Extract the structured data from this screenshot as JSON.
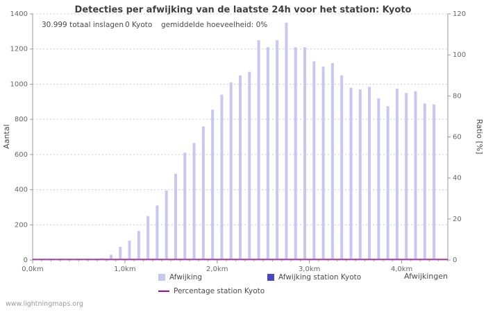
{
  "header": {
    "title": "Detecties per afwijking van de laatste 24h voor het station: Kyoto"
  },
  "annotations": {
    "total": "30.999 totaal inslagen",
    "station_count": "0 Kyoto",
    "average": "gemiddelde hoeveelheid: 0%"
  },
  "axes": {
    "left_label": "Aantal",
    "right_label": "Ratio [%]",
    "x_label": "Afwijkingen"
  },
  "legend": [
    {
      "label": "Afwijking",
      "type": "box"
    },
    {
      "label": "Afwijking station Kyoto",
      "type": "box"
    },
    {
      "label": "Percentage station Kyoto",
      "type": "line"
    }
  ],
  "footer": {
    "watermark": "www.lightningmaps.org"
  },
  "chart_data": {
    "type": "bar",
    "title": "Detecties per afwijking van de laatste 24h voor het station: Kyoto",
    "xlabel": "Afwijkingen",
    "x_unit": "km",
    "x_start": 0.0,
    "x_step": 0.1,
    "values": [
      4,
      2,
      2,
      3,
      3,
      4,
      6,
      10,
      30,
      75,
      110,
      165,
      250,
      310,
      395,
      490,
      610,
      665,
      760,
      855,
      940,
      1010,
      1050,
      1070,
      1250,
      1210,
      1250,
      1350,
      1210,
      1210,
      1130,
      1100,
      1120,
      1050,
      980,
      970,
      985,
      920,
      875,
      975,
      950,
      960,
      890,
      885
    ],
    "station_values_constant": 0,
    "percentage_series_constant": 0,
    "y_left": {
      "label": "Aantal",
      "min": 0,
      "max": 1400,
      "tick": 200
    },
    "y_right": {
      "label": "Ratio [%]",
      "min": 0,
      "max": 120,
      "tick": 20
    },
    "x_ticks": [
      "0,0km",
      "1,0km",
      "2,0km",
      "3,0km",
      "4,0km"
    ],
    "grid": "dashed-horizontal",
    "legend_position": "bottom",
    "colors": {
      "bar": "#c7c7f2",
      "station_bar": "#4747cc",
      "percent_line": "#aa00aa",
      "grid": "#cccccc",
      "axis": "#999999",
      "tick_text": "#666666"
    }
  }
}
